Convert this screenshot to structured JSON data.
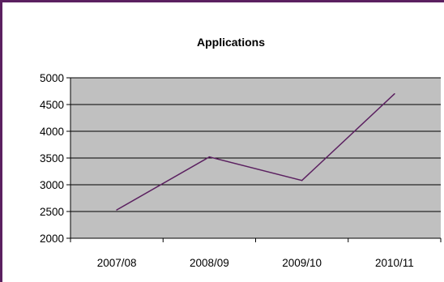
{
  "chart_data": {
    "type": "line",
    "title": "Applications",
    "xlabel": "",
    "ylabel": "",
    "categories": [
      "2007/08",
      "2008/09",
      "2009/10",
      "2010/11"
    ],
    "series": [
      {
        "values": [
          2530,
          3520,
          3080,
          4700
        ]
      }
    ],
    "ylim": [
      2000,
      5000
    ],
    "yticks": [
      2000,
      2500,
      3000,
      3500,
      4000,
      4500,
      5000
    ],
    "grid": true,
    "plot_background": "#c0c0c0",
    "line_color": "#5b2060",
    "border_color": "#5b2060"
  }
}
